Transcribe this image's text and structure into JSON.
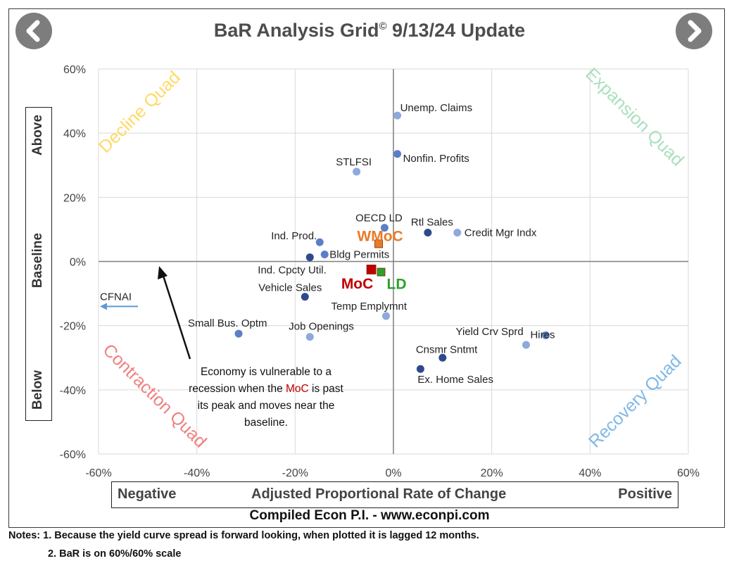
{
  "title": {
    "text": "BaR Analysis Grid",
    "copyright": "©",
    "update": " 9/13/24 Update"
  },
  "nav": {
    "prev_icon": "chevron-left-icon",
    "next_icon": "chevron-right-icon"
  },
  "y_axis_box": {
    "above": "Above",
    "baseline": "Baseline",
    "below": "Below"
  },
  "x_axis_box": {
    "negative": "Negative",
    "label": "Adjusted Proportional Rate of Change",
    "positive": "Positive"
  },
  "compiled_by": "Compiled Econ P.I. - www.econpi.com",
  "notes": [
    "Notes: 1. Because the yield curve spread is forward looking, when plotted it is lagged 12 months.",
    "2. BaR is on 60%/60% scale"
  ],
  "callout": {
    "text_before": "Economy is vulnerable to a recession when the ",
    "highlight": "MoC",
    "text_after": " is past its peak and moves near the baseline."
  },
  "colors": {
    "dark_point": "#2e4a8c",
    "light_point": "#8ea9db",
    "mid_point": "#5b7fc7",
    "moc": "#c00000",
    "wmoc": "#e97b29",
    "ld": "#2ca02c",
    "decline": "#ffd966",
    "expansion": "#a9dfbf",
    "contraction": "#f08080",
    "recovery": "#7fb8e6",
    "arrow": "#5b9bd5"
  },
  "chart_data": {
    "type": "scatter",
    "xlim": [
      -60,
      60
    ],
    "ylim": [
      -60,
      60
    ],
    "x_ticks": [
      "-60%",
      "-40%",
      "-20%",
      "0%",
      "20%",
      "40%",
      "60%"
    ],
    "y_ticks": [
      "60%",
      "40%",
      "20%",
      "0%",
      "-20%",
      "-40%",
      "-60%"
    ],
    "grid": true,
    "quadrants": {
      "top_left": "Decline Quad",
      "top_right": "Expansion Quad",
      "bottom_left": "Contraction Quad",
      "bottom_right": "Recovery Quad"
    },
    "points": [
      {
        "label": "Unemp. Claims",
        "x": 0.8,
        "y": 45.5,
        "shade": "light"
      },
      {
        "label": "Nonfin. Profits",
        "x": 0.8,
        "y": 33.5,
        "shade": "mid"
      },
      {
        "label": "STLFSI",
        "x": -7.5,
        "y": 28,
        "shade": "light"
      },
      {
        "label": "OECD LD",
        "x": -1.8,
        "y": 10.5,
        "shade": "mid"
      },
      {
        "label": "Rtl Sales",
        "x": 7,
        "y": 9,
        "shade": "dark"
      },
      {
        "label": "Credit Mgr Indx",
        "x": 13,
        "y": 9,
        "shade": "light"
      },
      {
        "label": "Ind. Prod.",
        "x": -15,
        "y": 6,
        "shade": "mid"
      },
      {
        "label": "Bldg Permits",
        "x": -14,
        "y": 2.2,
        "shade": "mid"
      },
      {
        "label": "Ind. Cpcty Util.",
        "x": -17,
        "y": 1.3,
        "shade": "dark"
      },
      {
        "label": "Vehicle Sales",
        "x": -18,
        "y": -11,
        "shade": "dark"
      },
      {
        "label": "Temp Emplymnt",
        "x": -1.5,
        "y": -17,
        "shade": "light"
      },
      {
        "label": "Small Bus. Optm",
        "x": -31.5,
        "y": -22.5,
        "shade": "mid"
      },
      {
        "label": "Job Openings",
        "x": -17,
        "y": -23.5,
        "shade": "light"
      },
      {
        "label": "Hires",
        "x": 31,
        "y": -23,
        "shade": "mid"
      },
      {
        "label": "Yield Crv Sprd",
        "x": 27,
        "y": -26,
        "shade": "light"
      },
      {
        "label": "Cnsmr Sntmt",
        "x": 10,
        "y": -30,
        "shade": "dark"
      },
      {
        "label": "Ex. Home Sales",
        "x": 5.5,
        "y": -33.5,
        "shade": "dark"
      }
    ],
    "composites": [
      {
        "label": "WMoC",
        "x": -3,
        "y": 5.5,
        "color_key": "wmoc"
      },
      {
        "label": "MoC",
        "x": -4.5,
        "y": -2.5,
        "color_key": "moc"
      },
      {
        "label": "LD",
        "x": -2.5,
        "y": -3.3,
        "color_key": "ld"
      }
    ],
    "offscale": {
      "label": "CFNAI",
      "y": -14
    }
  }
}
